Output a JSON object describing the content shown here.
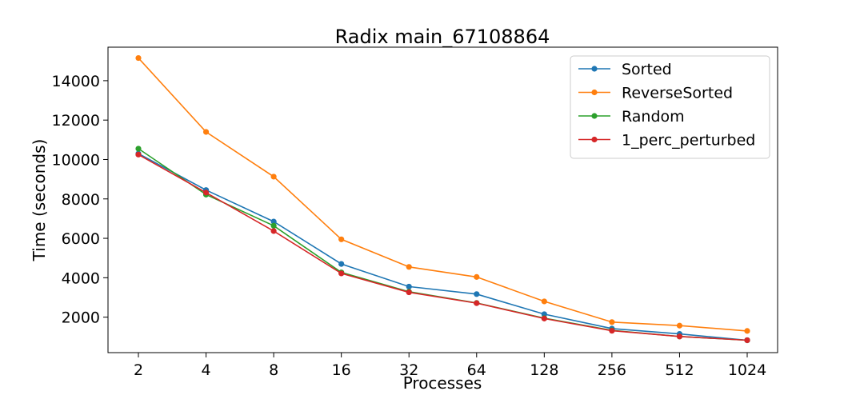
{
  "chart_data": {
    "type": "line",
    "title": "Radix main_67108864",
    "xlabel": "Processes",
    "ylabel": "Time (seconds)",
    "x": [
      "2",
      "4",
      "8",
      "16",
      "32",
      "64",
      "128",
      "256",
      "512",
      "1024"
    ],
    "ylim": [
      200,
      15700
    ],
    "yticks": [
      2000,
      4000,
      6000,
      8000,
      10000,
      12000,
      14000
    ],
    "grid": false,
    "legend_position": "top-right",
    "series": [
      {
        "name": "Sorted",
        "color": "#1f77b4",
        "values": [
          10300,
          8450,
          6850,
          4700,
          3550,
          3170,
          2150,
          1420,
          1150,
          830
        ]
      },
      {
        "name": "ReverseSorted",
        "color": "#ff7f0e",
        "values": [
          15150,
          11400,
          9130,
          5950,
          4550,
          4040,
          2800,
          1750,
          1570,
          1300
        ]
      },
      {
        "name": "Random",
        "color": "#2ca02c",
        "values": [
          10550,
          8220,
          6640,
          4270,
          3290,
          2720,
          1950,
          1330,
          1020,
          830
        ]
      },
      {
        "name": "1_perc_perturbed",
        "color": "#d62728",
        "values": [
          10250,
          8320,
          6370,
          4220,
          3260,
          2710,
          1930,
          1310,
          1020,
          830
        ]
      }
    ]
  }
}
